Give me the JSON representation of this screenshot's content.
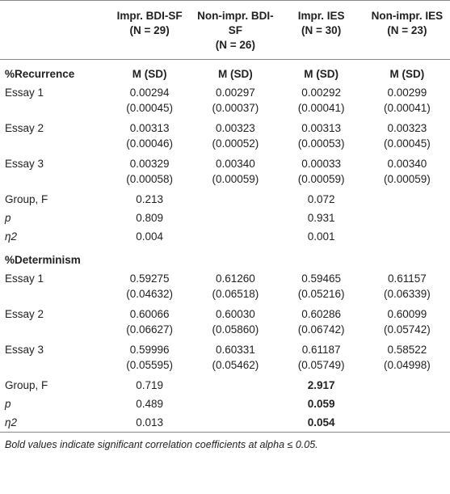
{
  "table": {
    "columns": [
      [
        "Impr. BDI-SF",
        "(N = 29)"
      ],
      [
        "Non-impr. BDI-SF",
        "(N = 26)"
      ],
      [
        "Impr. IES",
        "(N = 30)"
      ],
      [
        "Non-impr. IES",
        "(N = 23)"
      ]
    ],
    "sections": [
      {
        "title": "%Recurrence",
        "subheaders": [
          "M (SD)",
          "M (SD)",
          "M (SD)",
          "M (SD)"
        ],
        "rows": [
          {
            "label": "Essay 1",
            "cells": [
              [
                "0.00294",
                "(0.00045)"
              ],
              [
                "0.00297",
                "(0.00037)"
              ],
              [
                "0.00292",
                "(0.00041)"
              ],
              [
                "0.00299",
                "(0.00041)"
              ]
            ]
          },
          {
            "label": "Essay 2",
            "cells": [
              [
                "0.00313",
                "(0.00046)"
              ],
              [
                "0.00323",
                "(0.00052)"
              ],
              [
                "0.00313",
                "(0.00053)"
              ],
              [
                "0.00323",
                "(0.00045)"
              ]
            ]
          },
          {
            "label": "Essay 3",
            "cells": [
              [
                "0.00329",
                "(0.00058)"
              ],
              [
                "0.00340",
                "(0.00059)"
              ],
              [
                "0.00033",
                "(0.00059)"
              ],
              [
                "0.00340",
                "(0.00059)"
              ]
            ]
          },
          {
            "label": "Group, F",
            "italic": false,
            "cells": [
              "0.213",
              null,
              "0.072",
              null
            ]
          },
          {
            "label": "p",
            "italic": true,
            "cells": [
              "0.809",
              null,
              "0.931",
              null
            ]
          },
          {
            "label": "η2",
            "italic": true,
            "cells": [
              "0.004",
              null,
              "0.001",
              null
            ]
          }
        ]
      },
      {
        "title": "%Determinism",
        "rows": [
          {
            "label": "Essay 1",
            "cells": [
              [
                "0.59275",
                "(0.04632)"
              ],
              [
                "0.61260",
                "(0.06518)"
              ],
              [
                "0.59465",
                "(0.05216)"
              ],
              [
                "0.61157",
                "(0.06339)"
              ]
            ]
          },
          {
            "label": "Essay 2",
            "cells": [
              [
                "0.60066",
                "(0.06627)"
              ],
              [
                "0.60030",
                "(0.05860)"
              ],
              [
                "0.60286",
                "(0.06742)"
              ],
              [
                "0.60099",
                "(0.05742)"
              ]
            ]
          },
          {
            "label": "Essay 3",
            "cells": [
              [
                "0.59996",
                "(0.05595)"
              ],
              [
                "0.60331",
                "(0.05462)"
              ],
              [
                "0.61187",
                "(0.05749)"
              ],
              [
                "0.58522",
                "(0.04998)"
              ]
            ]
          },
          {
            "label": "Group, F",
            "italic": false,
            "bold_cells": [
              2
            ],
            "cells": [
              "0.719",
              null,
              "2.917",
              null
            ]
          },
          {
            "label": "p",
            "italic": true,
            "bold_cells": [
              2
            ],
            "cells": [
              "0.489",
              null,
              "0.059",
              null
            ]
          },
          {
            "label": "η2",
            "italic": true,
            "bold_cells": [
              2
            ],
            "cells": [
              "0.013",
              null,
              "0.054",
              null
            ]
          }
        ]
      }
    ],
    "footnote": "Bold values indicate significant correlation coefficients at alpha ≤ 0.05."
  }
}
